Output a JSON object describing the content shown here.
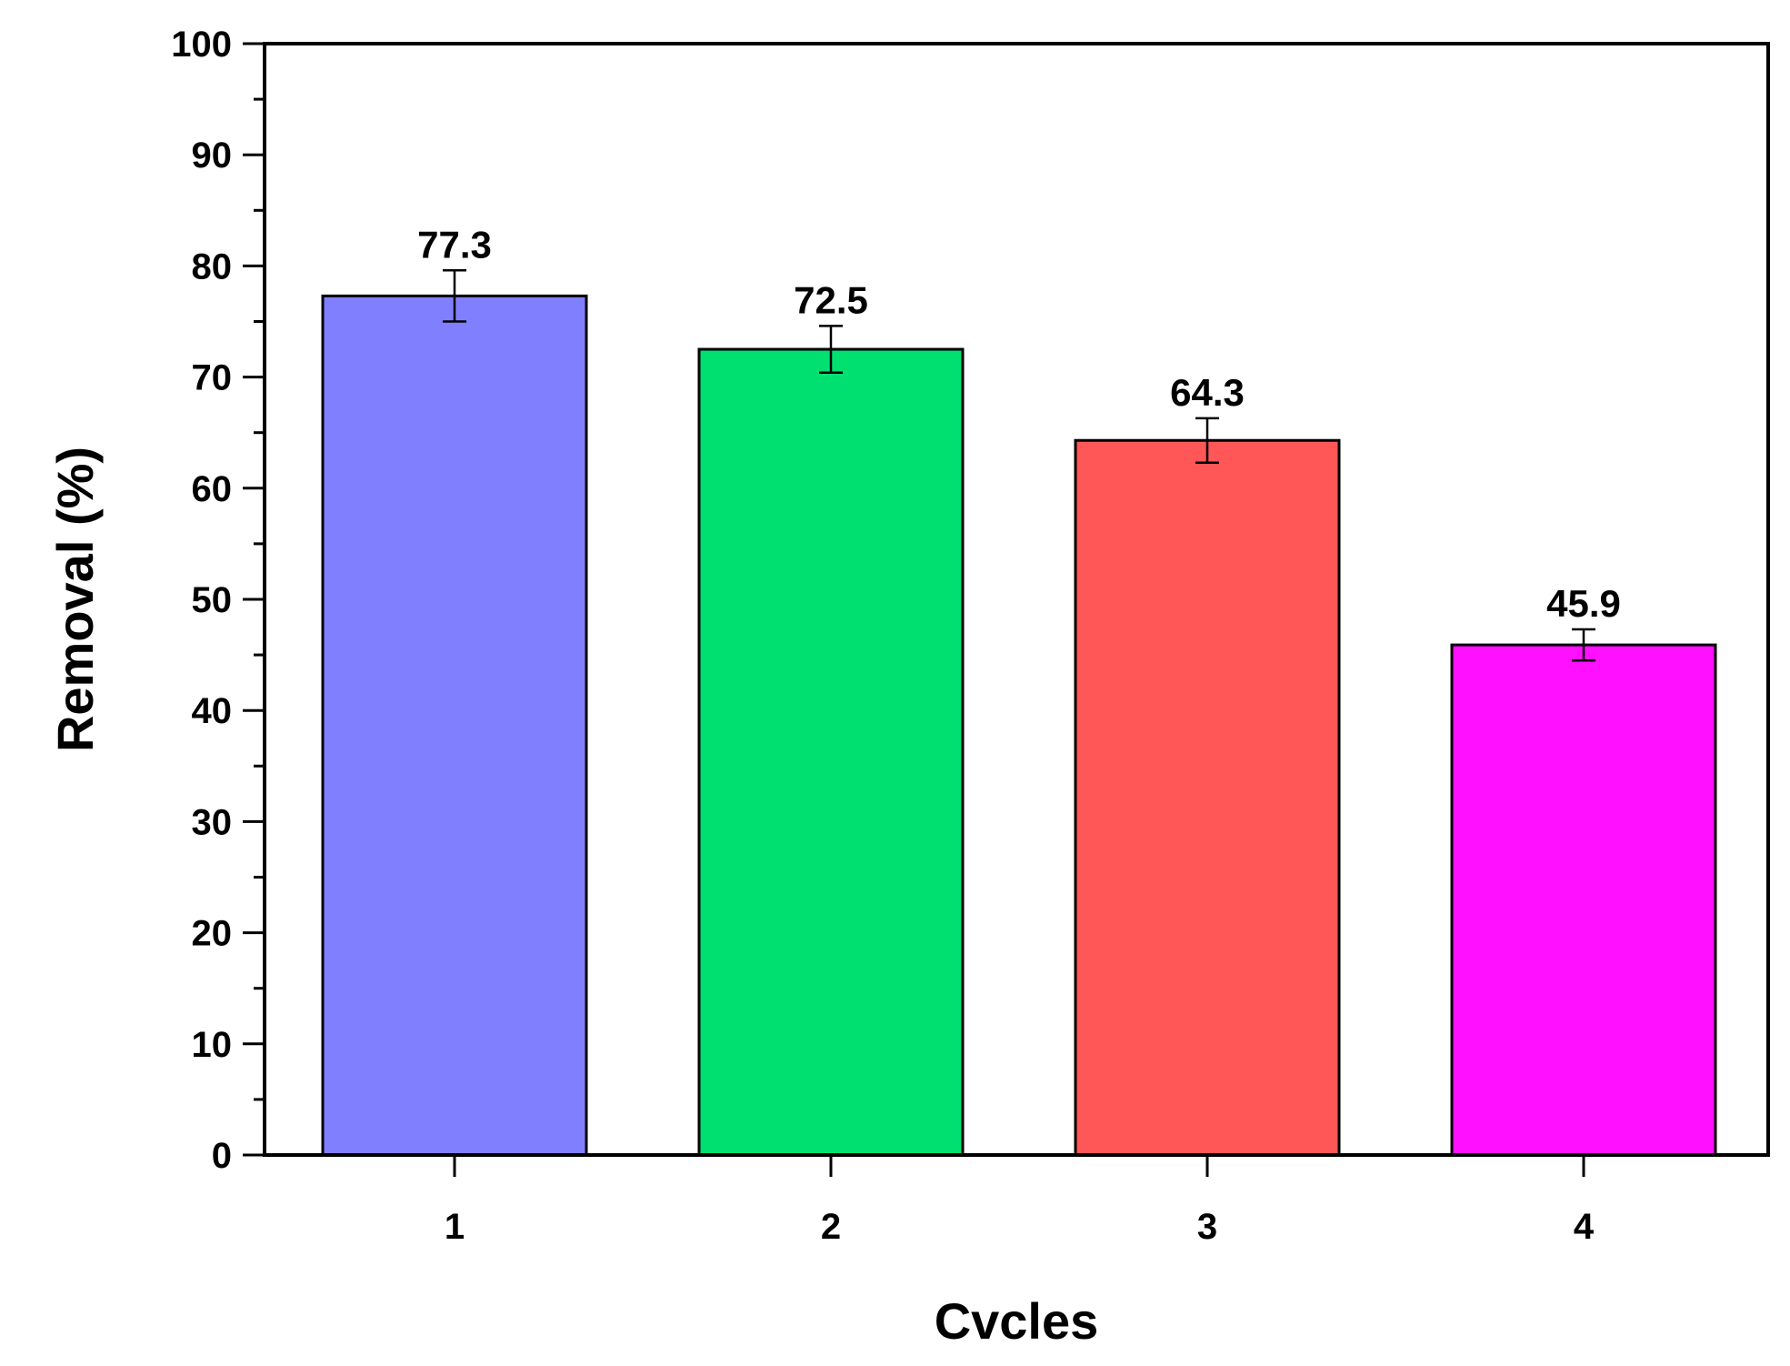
{
  "chart_data": {
    "type": "bar",
    "categories": [
      "1",
      "2",
      "3",
      "4"
    ],
    "values": [
      77.3,
      72.5,
      64.3,
      45.9
    ],
    "error": [
      2.3,
      2.1,
      2.0,
      1.4
    ],
    "value_labels": [
      "77.3",
      "72.5",
      "64.3",
      "45.9"
    ],
    "colors": [
      "#8080ff",
      "#00e070",
      "#ff5757",
      "#ff10ff"
    ],
    "xlabel": "Cvcles",
    "ylabel": "Removal (%)",
    "ylim": [
      0,
      100
    ],
    "yticks": [
      "0",
      "10",
      "20",
      "30",
      "40",
      "50",
      "60",
      "70",
      "80",
      "90",
      "100"
    ],
    "grid": false,
    "legend": "none"
  }
}
